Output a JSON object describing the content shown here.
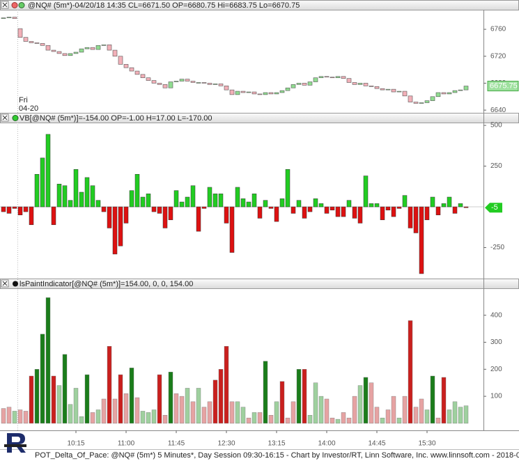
{
  "chart_data": [
    {
      "type": "candlestick",
      "title": "@NQ# (5m*)-04/20/18 14:35 CL=6671.50 OP=6680.75 Hi=6683.75 Lo=6670.75",
      "day_label": "Fri",
      "date_label": "04-20",
      "open": [
        6776,
        6777,
        6778,
        6761,
        6748,
        6742,
        6740,
        6739,
        6736,
        6729,
        6727,
        6724,
        6721,
        6724,
        6726,
        6731,
        6733,
        6730,
        6736,
        6737,
        6729,
        6720,
        6708,
        6703,
        6698,
        6693,
        6688,
        6684,
        6680,
        6678,
        6673,
        6682,
        6683,
        6686,
        6683,
        6681,
        6681,
        6680,
        6678,
        6679,
        6676,
        6670,
        6663,
        6668,
        6666,
        6667,
        6664,
        6663,
        6666,
        6664,
        6666,
        6669,
        6673,
        6678,
        6680,
        6677,
        6682,
        6688,
        6690,
        6689,
        6688,
        6690,
        6687,
        6681,
        6678,
        6680,
        6676,
        6675,
        6672,
        6670,
        6671,
        6667,
        6668,
        6661,
        6652,
        6650,
        6651,
        6654,
        6660,
        6666,
        6664,
        6666,
        6669,
        6670
      ],
      "close": [
        6777,
        6778,
        6776,
        6748,
        6742,
        6740,
        6739,
        6736,
        6729,
        6727,
        6724,
        6721,
        6724,
        6726,
        6731,
        6733,
        6730,
        6736,
        6737,
        6729,
        6720,
        6708,
        6703,
        6698,
        6693,
        6688,
        6684,
        6680,
        6678,
        6673,
        6682,
        6683,
        6686,
        6683,
        6681,
        6681,
        6680,
        6678,
        6679,
        6676,
        6670,
        6663,
        6668,
        6666,
        6667,
        6664,
        6663,
        6666,
        6664,
        6666,
        6669,
        6673,
        6678,
        6680,
        6677,
        6682,
        6688,
        6690,
        6689,
        6688,
        6690,
        6687,
        6681,
        6678,
        6680,
        6676,
        6675,
        6672,
        6670,
        6671,
        6667,
        6668,
        6661,
        6652,
        6650,
        6651,
        6654,
        6660,
        6666,
        6664,
        6666,
        6669,
        6670,
        6675.75
      ],
      "up_color": "#90dc90",
      "down_color": "#f2b0b8",
      "ylim": [
        6636,
        6788
      ],
      "yticks": [
        6640,
        6680,
        6720,
        6760
      ],
      "last_value": 6675.75
    },
    {
      "type": "bar",
      "title": "VB[@NQ# (5m*)]=-154.00 OP=-1.00 H=17.00 L=-170.00",
      "values": [
        -30,
        -40,
        -10,
        -50,
        -30,
        -110,
        200,
        300,
        445,
        -110,
        140,
        130,
        40,
        230,
        90,
        180,
        130,
        40,
        -30,
        -130,
        -290,
        -240,
        -100,
        100,
        200,
        60,
        80,
        -30,
        -40,
        -130,
        -80,
        100,
        30,
        60,
        130,
        -150,
        -10,
        120,
        80,
        80,
        -100,
        -280,
        120,
        50,
        30,
        80,
        -70,
        40,
        -10,
        -90,
        50,
        230,
        -40,
        40,
        -70,
        -30,
        50,
        20,
        -40,
        -20,
        -60,
        -60,
        40,
        -70,
        -100,
        190,
        20,
        20,
        -80,
        -20,
        -60,
        -10,
        70,
        -130,
        -160,
        -410,
        -80,
        60,
        -50,
        20,
        60,
        -40,
        20,
        -5
      ],
      "positive_color": "#22cc22",
      "negative_color": "#dd1111",
      "ylim": [
        -440,
        513
      ],
      "yticks": [
        -250,
        250,
        500
      ],
      "last_value": -5
    },
    {
      "type": "histogram-bar",
      "title": "lsPaintIndicator[@NQ# (5m*)]=154.00, 0, 0, 154.00",
      "values": [
        55,
        60,
        45,
        50,
        45,
        175,
        200,
        330,
        465,
        175,
        140,
        255,
        70,
        130,
        25,
        180,
        40,
        50,
        90,
        285,
        90,
        180,
        110,
        205,
        95,
        45,
        40,
        50,
        180,
        30,
        190,
        110,
        100,
        130,
        80,
        130,
        60,
        80,
        160,
        200,
        285,
        80,
        80,
        60,
        20,
        40,
        40,
        230,
        30,
        80,
        155,
        20,
        80,
        200,
        200,
        30,
        150,
        100,
        90,
        20,
        15,
        40,
        20,
        100,
        140,
        170,
        150,
        60,
        20,
        50,
        100,
        20,
        100,
        380,
        60,
        90,
        50,
        175,
        20,
        170,
        50,
        80,
        60,
        65
      ],
      "colors": [
        "#e6a3a3",
        "#e6a3a3",
        "#9fd09f",
        "#e6a3a3",
        "#e6a3a3",
        "#c9201e",
        "#1b7d1b",
        "#1b7d1b",
        "#1b7d1b",
        "#c9201e",
        "#9fd09f",
        "#1b7d1b",
        "#9fd09f",
        "#9fd09f",
        "#9fd09f",
        "#1b7d1b",
        "#e6a3a3",
        "#9fd09f",
        "#e6a3a3",
        "#c9201e",
        "#e6a3a3",
        "#c9201e",
        "#e6a3a3",
        "#1b7d1b",
        "#e6a3a3",
        "#9fd09f",
        "#9fd09f",
        "#9fd09f",
        "#c9201e",
        "#e6a3a3",
        "#1b7d1b",
        "#e6a3a3",
        "#e6a3a3",
        "#9fd09f",
        "#e6a3a3",
        "#9fd09f",
        "#e6a3a3",
        "#e6a3a3",
        "#c9201e",
        "#c9201e",
        "#c9201e",
        "#e6a3a3",
        "#9fd09f",
        "#9fd09f",
        "#e6a3a3",
        "#9fd09f",
        "#e6a3a3",
        "#1b7d1b",
        "#e6a3a3",
        "#9fd09f",
        "#c9201e",
        "#e6a3a3",
        "#e6a3a3",
        "#1b7d1b",
        "#c9201e",
        "#9fd09f",
        "#9fd09f",
        "#9fd09f",
        "#e6a3a3",
        "#e6a3a3",
        "#9fd09f",
        "#e6a3a3",
        "#e6a3a3",
        "#e6a3a3",
        "#9fd09f",
        "#1b7d1b",
        "#e6a3a3",
        "#e6a3a3",
        "#9fd09f",
        "#e6a3a3",
        "#e6a3a3",
        "#9fd09f",
        "#e6a3a3",
        "#c9201e",
        "#e6a3a3",
        "#e6a3a3",
        "#9fd09f",
        "#1b7d1b",
        "#e6a3a3",
        "#c9201e",
        "#9fd09f",
        "#9fd09f",
        "#9fd09f",
        "#9fd09f"
      ],
      "ylim": [
        -26,
        497
      ],
      "yticks": [
        100,
        200,
        300,
        400
      ]
    }
  ],
  "x_axis": {
    "categories": [
      null,
      null,
      null,
      null,
      null,
      null,
      null,
      null,
      null,
      null,
      null,
      null,
      null,
      "10:15",
      null,
      null,
      null,
      null,
      null,
      null,
      null,
      null,
      "11:00",
      null,
      null,
      null,
      null,
      null,
      null,
      null,
      null,
      "11:45",
      null,
      null,
      null,
      null,
      null,
      null,
      null,
      null,
      "12:30",
      null,
      null,
      null,
      null,
      null,
      null,
      null,
      null,
      "13:15",
      null,
      null,
      null,
      null,
      null,
      null,
      null,
      null,
      "14:00",
      null,
      null,
      null,
      null,
      null,
      null,
      null,
      null,
      "14:45",
      null,
      null,
      null,
      null,
      null,
      null,
      null,
      null,
      "15:30",
      null,
      null,
      null,
      null,
      null,
      null,
      null
    ]
  },
  "footer": "POT_Delta_Of_Pace: @NQ# (5m*) 5 Minutes*, Day Session 09:30-16:15 - Chart by Investor/RT, Linn Software, Inc. www.linnsoft.com - 2018-0"
}
